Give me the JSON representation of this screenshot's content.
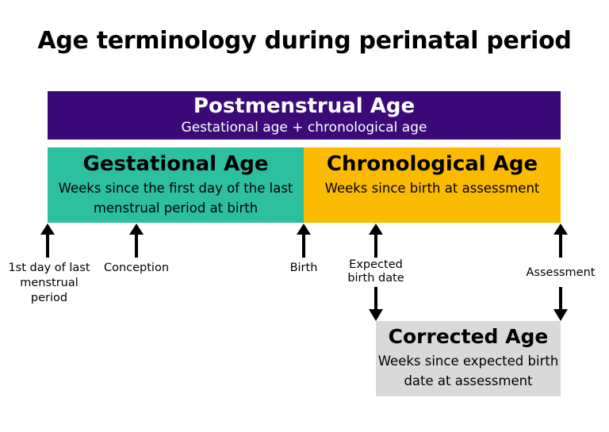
{
  "title": "Age terminology during perinatal period",
  "colors": {
    "postmenstrual": "#3b0a78",
    "gestational": "#2cbfa0",
    "chronological": "#fbbb00",
    "corrected": "#d9d9d9",
    "arrow": "#000000"
  },
  "boxes": {
    "postmenstrual": {
      "title": "Postmenstrual Age",
      "subtitle": "Gestational age + chronological age"
    },
    "gestational": {
      "title": "Gestational Age",
      "subtitle": "Weeks since the first day of the last menstrual period at birth"
    },
    "chronological": {
      "title": "Chronological Age",
      "subtitle": "Weeks since birth at assessment"
    },
    "corrected": {
      "title": "Corrected Age",
      "subtitle": "Weeks since expected birth date at assessment"
    }
  },
  "labels": {
    "lmp": "1st day of last menstrual period",
    "conception": "Conception",
    "birth": "Birth",
    "expected": "Expected birth date",
    "assessment": "Assessment"
  }
}
